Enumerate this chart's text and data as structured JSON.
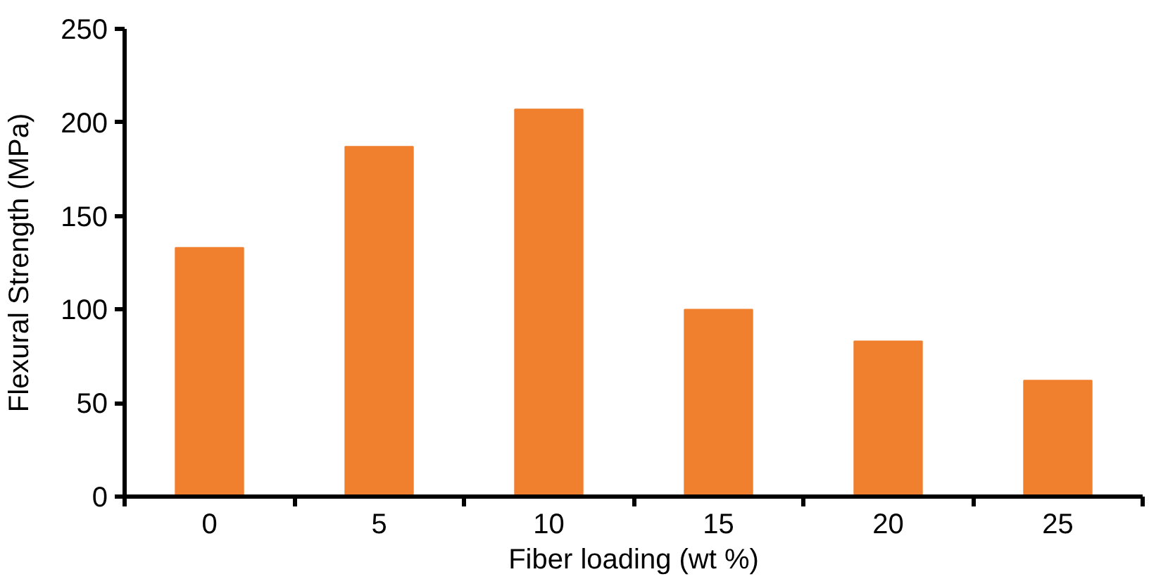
{
  "chart_data": {
    "type": "bar",
    "xlabel": "Fiber loading (wt %)",
    "ylabel": "Flexural Strength (MPa)",
    "categories": [
      "0",
      "5",
      "10",
      "15",
      "20",
      "25"
    ],
    "values": [
      133,
      187,
      207,
      100,
      83,
      62
    ],
    "color": "#f07f2e",
    "ylim": [
      0,
      250
    ],
    "yticks": [
      0,
      50,
      100,
      150,
      200,
      250
    ],
    "grid": false
  }
}
